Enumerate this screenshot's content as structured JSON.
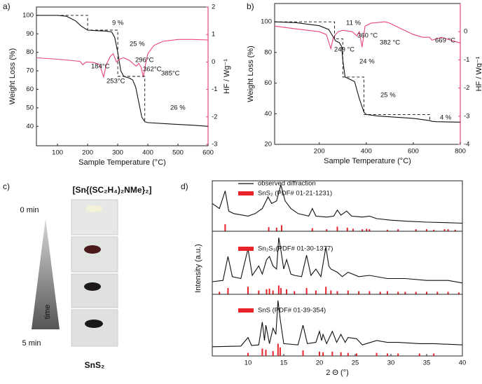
{
  "panel_labels": [
    "a)",
    "b)",
    "c)",
    "d)"
  ],
  "photo_panel": {
    "title": "[Sn{(SC₂H₄)₂NMe}₂]",
    "start_label": "0 min",
    "arrow_label": "time",
    "end_label": "5 min",
    "product_label": "SnS₂"
  },
  "chart_data": [
    {
      "type": "tga",
      "x_label": "Sample Temperature (°C)",
      "y_label": "Weight Loss (%)",
      "y2_label": "HF / Wg⁻¹",
      "xlim": [
        30,
        600
      ],
      "xticks": [
        100,
        200,
        300,
        400,
        500,
        600
      ],
      "ylim": [
        29.5,
        104.5
      ],
      "yticks": [
        40,
        50,
        60,
        70,
        80,
        90,
        100
      ],
      "y2lim": [
        -3.05,
        2
      ],
      "y2ticks": [
        -3,
        -2,
        -1,
        0,
        1,
        2
      ],
      "series": [
        {
          "color": "#111111",
          "x": [
            30,
            100,
            130,
            160,
            180,
            200,
            230,
            260,
            280,
            290,
            300,
            310,
            320,
            340,
            350,
            360,
            370,
            380,
            390,
            400,
            450,
            500,
            550,
            600
          ],
          "values": [
            100,
            100,
            99.5,
            97,
            94,
            92,
            91.7,
            91.5,
            91,
            88,
            80,
            70,
            67,
            66,
            65,
            61,
            53,
            45,
            42.5,
            42,
            41.5,
            41,
            40.6,
            40
          ]
        },
        {
          "color": "#e8457a",
          "axis": "y2",
          "x": [
            30,
            100,
            150,
            175,
            184,
            195,
            220,
            240,
            253,
            262,
            275,
            285,
            296,
            305,
            320,
            340,
            355,
            362,
            370,
            378,
            385,
            392,
            400,
            420,
            450,
            500,
            550,
            600
          ],
          "values": [
            0.15,
            0.1,
            0.05,
            0.02,
            -0.1,
            0.0,
            -0.02,
            -0.1,
            -0.55,
            -0.1,
            0.2,
            0.3,
            0.0,
            0.1,
            0.15,
            0.05,
            -0.1,
            -0.15,
            -0.05,
            -0.2,
            -0.55,
            -0.1,
            0.3,
            0.6,
            0.75,
            0.82,
            0.82,
            0.8
          ]
        },
        {
          "color": "#111111",
          "dash": true,
          "x": [
            30,
            200,
            200,
            300,
            300,
            390,
            390
          ],
          "values": [
            100,
            100,
            92,
            92,
            67,
            67,
            42
          ]
        }
      ],
      "annotations": [
        {
          "text": "9 %",
          "color": "#111111"
        },
        {
          "text": "25 %",
          "color": "#111111"
        },
        {
          "text": "26 %",
          "color": "#111111"
        },
        {
          "text": "184°C",
          "color": "#e8457a"
        },
        {
          "text": "253°C",
          "color": "#e8457a"
        },
        {
          "text": "296°C",
          "color": "#e8457a"
        },
        {
          "text": "362°C",
          "color": "#e8457a"
        },
        {
          "text": "385°C",
          "color": "#e8457a"
        }
      ]
    },
    {
      "type": "tga",
      "x_label": "Sample Temperature (°C)",
      "y_label": "Weight Loss (%)",
      "y2_label": "HF / Wg⁻¹",
      "xlim": [
        10,
        800
      ],
      "xticks": [
        200,
        400,
        600,
        800
      ],
      "ylim": [
        20,
        112
      ],
      "yticks": [
        20,
        40,
        60,
        80,
        100
      ],
      "y2lim": [
        -4,
        1
      ],
      "y2ticks": [
        -4,
        -3,
        -2,
        -1,
        0
      ],
      "series": [
        {
          "color": "#111111",
          "x": [
            10,
            100,
            200,
            240,
            260,
            270,
            285,
            295,
            300,
            310,
            330,
            350,
            370,
            390,
            400,
            450,
            500,
            600,
            670,
            680,
            700,
            800
          ],
          "values": [
            100,
            99.5,
            97.5,
            95,
            90,
            87.5,
            86.5,
            84,
            75,
            64,
            62.5,
            61,
            50,
            41,
            39.5,
            38.5,
            38,
            37,
            35.5,
            35,
            34.8,
            34.5
          ]
        },
        {
          "color": "#e8457a",
          "axis": "y2",
          "x": [
            10,
            100,
            200,
            230,
            249,
            260,
            280,
            300,
            340,
            360,
            370,
            382,
            395,
            420,
            480,
            500,
            550,
            600,
            640,
            669,
            680,
            720,
            800
          ],
          "values": [
            0.2,
            0.1,
            0.0,
            -0.1,
            -0.6,
            -0.2,
            0.0,
            0.05,
            0.0,
            -0.15,
            0.0,
            -0.55,
            0.2,
            0.3,
            0.35,
            0.3,
            0.1,
            -0.1,
            -0.2,
            -0.2,
            -0.3,
            -0.2,
            -0.4
          ]
        },
        {
          "color": "#111111",
          "dash": true,
          "x": [
            10,
            265,
            265,
            300,
            300,
            390,
            390,
            670,
            670
          ],
          "values": [
            100,
            100,
            89,
            89,
            64,
            64,
            39.5,
            39.5,
            35.5
          ]
        }
      ],
      "annotations": [
        {
          "text": "11 %",
          "color": "#111111"
        },
        {
          "text": "24 %",
          "color": "#111111"
        },
        {
          "text": "25 %",
          "color": "#111111"
        },
        {
          "text": "4 %",
          "color": "#111111"
        },
        {
          "text": "249 °C",
          "color": "#e8457a"
        },
        {
          "text": "360 °C",
          "color": "#e8457a"
        },
        {
          "text": "382 °C",
          "color": "#e8457a"
        },
        {
          "text": "669 °C",
          "color": "#e8457a"
        }
      ]
    },
    {
      "type": "xrd",
      "xlim": [
        5,
        40
      ],
      "ylim": [
        0,
        100
      ],
      "series": [
        {
          "name": "observed diffraction",
          "color": "#111111",
          "x": [
            5,
            6,
            6.8,
            7.3,
            8,
            10,
            11,
            12,
            12.8,
            13.3,
            14,
            14.6,
            15.2,
            16,
            17,
            18.5,
            19,
            19.5,
            21,
            22,
            22.5,
            23,
            23.8,
            24.5,
            26,
            27,
            28,
            30,
            32,
            35,
            38,
            40
          ],
          "values": [
            55,
            45,
            80,
            40,
            35,
            30,
            35,
            45,
            68,
            55,
            60,
            92,
            60,
            45,
            35,
            30,
            45,
            30,
            28,
            30,
            42,
            32,
            40,
            30,
            28,
            30,
            25,
            22,
            20,
            18,
            17,
            16
          ]
        },
        {
          "name": "SnS₂ (PDF# 01-21-1231)",
          "color": "#e8232a",
          "style": "sticks",
          "x": [
            6.8,
            12.9,
            14,
            14.7,
            19,
            21,
            22.5,
            23.9,
            24.7,
            26,
            26.6,
            27,
            29.5,
            31,
            33.5,
            35,
            36,
            37.5,
            38,
            39
          ],
          "values": [
            14,
            8,
            7,
            12,
            6,
            4,
            9,
            7,
            5,
            4,
            5,
            4,
            3,
            4,
            4,
            4,
            3,
            4,
            4,
            3
          ]
        }
      ]
    },
    {
      "type": "xrd",
      "xlim": [
        5,
        40
      ],
      "ylim": [
        0,
        100
      ],
      "y_label": "Intensity (a.u.)",
      "series": [
        {
          "color": "#111111",
          "x": [
            5,
            6.5,
            7.2,
            7.8,
            9,
            10,
            10.6,
            11.5,
            12,
            12.6,
            13,
            13.5,
            14,
            14.3,
            14.6,
            15,
            15.4,
            16,
            16.5,
            17.5,
            18.2,
            18.8,
            19.5,
            20.2,
            20.9,
            21.3,
            21.6,
            22.5,
            23.2,
            24,
            25.5,
            27,
            29.5,
            32,
            35,
            38,
            40
          ],
          "values": [
            20,
            22,
            60,
            28,
            25,
            72,
            30,
            45,
            32,
            55,
            60,
            45,
            40,
            90,
            70,
            40,
            55,
            32,
            30,
            28,
            62,
            30,
            40,
            28,
            75,
            45,
            40,
            35,
            28,
            35,
            28,
            30,
            25,
            25,
            22,
            22,
            18
          ]
        },
        {
          "name": "Sn₂S₃(PDF# 01-30-1377)",
          "color": "#e8232a",
          "style": "sticks",
          "x": [
            6,
            7.2,
            10,
            11.5,
            12.6,
            13,
            13.5,
            14.3,
            14.6,
            15.4,
            16.5,
            18.2,
            19.5,
            20.9,
            21.6,
            22.5,
            24,
            25.5,
            27,
            28.5,
            29.5,
            31,
            32,
            33.5,
            35,
            36.5,
            38,
            39.5
          ],
          "values": [
            4,
            10,
            12,
            6,
            8,
            9,
            6,
            14,
            10,
            8,
            5,
            10,
            6,
            12,
            6,
            5,
            6,
            5,
            5,
            4,
            5,
            4,
            4,
            4,
            4,
            4,
            4,
            3
          ]
        }
      ]
    },
    {
      "type": "xrd",
      "xlim": [
        5,
        40
      ],
      "ylim": [
        0,
        100
      ],
      "xticks": [
        10,
        15,
        20,
        25,
        30,
        35,
        40
      ],
      "x_label": "2 Θ (°)",
      "series": [
        {
          "color": "#111111",
          "x": [
            5,
            9,
            10,
            10.5,
            11.5,
            12,
            12.3,
            12.5,
            13,
            13.5,
            13.9,
            14.2,
            14.5,
            15,
            17,
            17.7,
            18.3,
            19.5,
            20,
            20.3,
            20.5,
            21,
            21.8,
            22.4,
            23,
            23.6,
            24,
            25.2,
            26,
            28,
            29.5,
            31,
            34,
            36,
            40
          ],
          "values": [
            15,
            16,
            30,
            17,
            18,
            55,
            25,
            50,
            20,
            45,
            35,
            90,
            60,
            20,
            18,
            50,
            20,
            22,
            40,
            25,
            35,
            20,
            40,
            22,
            35,
            22,
            30,
            28,
            18,
            25,
            22,
            22,
            20,
            20,
            18
          ]
        },
        {
          "name": "SnS (PDF# 01-39-354)",
          "color": "#e8232a",
          "style": "sticks",
          "x": [
            10,
            12,
            12.5,
            13.5,
            14.2,
            14.5,
            17.7,
            20,
            20.5,
            21.8,
            23,
            24,
            25.2,
            28,
            29.5,
            31,
            34,
            36
          ],
          "values": [
            5,
            12,
            10,
            8,
            20,
            14,
            9,
            7,
            6,
            7,
            6,
            5,
            4,
            5,
            4,
            4,
            4,
            4
          ]
        }
      ]
    }
  ]
}
